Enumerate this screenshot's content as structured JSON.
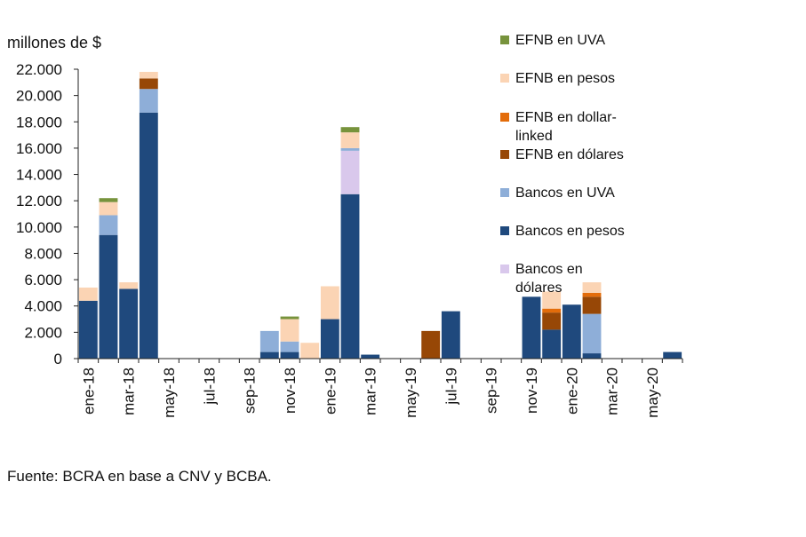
{
  "chart_data": {
    "type": "bar",
    "stacked": true,
    "title": "",
    "ylabel": "millones de $",
    "xlabel": "",
    "ylim": [
      0,
      22000
    ],
    "yticks": [
      0,
      2000,
      4000,
      6000,
      8000,
      10000,
      12000,
      14000,
      16000,
      18000,
      20000,
      22000
    ],
    "ytick_labels": [
      "0",
      "2.000",
      "4.000",
      "6.000",
      "8.000",
      "10.000",
      "12.000",
      "14.000",
      "16.000",
      "18.000",
      "20.000",
      "22.000"
    ],
    "categories": [
      "ene-18",
      "feb-18",
      "mar-18",
      "abr-18",
      "may-18",
      "jun-18",
      "jul-18",
      "ago-18",
      "sep-18",
      "oct-18",
      "nov-18",
      "dic-18",
      "ene-19",
      "feb-19",
      "mar-19",
      "abr-19",
      "may-19",
      "jun-19",
      "jul-19",
      "ago-19",
      "sep-19",
      "oct-19",
      "nov-19",
      "dic-19",
      "ene-20",
      "feb-20",
      "mar-20",
      "abr-20",
      "may-20",
      "jun-20"
    ],
    "xtick_labels": [
      "ene-18",
      "mar-18",
      "may-18",
      "jul-18",
      "sep-18",
      "nov-18",
      "ene-19",
      "mar-19",
      "may-19",
      "jul-19",
      "sep-19",
      "nov-19",
      "ene-20",
      "mar-20",
      "may-20"
    ],
    "series": [
      {
        "name": "Bancos en pesos",
        "color": "#1f497d",
        "values": [
          4400,
          9400,
          5300,
          18700,
          0,
          0,
          0,
          0,
          0,
          500,
          500,
          0,
          3000,
          12500,
          300,
          0,
          0,
          0,
          3600,
          0,
          0,
          0,
          4700,
          2200,
          4100,
          400,
          0,
          0,
          0,
          500
        ]
      },
      {
        "name": "Bancos en dólares",
        "color": "#d9c8ec",
        "values": [
          0,
          0,
          0,
          0,
          0,
          0,
          0,
          0,
          0,
          0,
          0,
          0,
          0,
          3300,
          0,
          0,
          0,
          0,
          0,
          0,
          0,
          0,
          0,
          0,
          0,
          0,
          0,
          0,
          0,
          0
        ]
      },
      {
        "name": "Bancos en UVA",
        "color": "#8eaed8",
        "values": [
          0,
          1500,
          0,
          1800,
          0,
          0,
          0,
          0,
          0,
          1600,
          800,
          0,
          0,
          200,
          0,
          0,
          0,
          0,
          0,
          0,
          0,
          0,
          0,
          0,
          0,
          3000,
          0,
          0,
          0,
          0
        ]
      },
      {
        "name": "EFNB en dólares",
        "color": "#974706",
        "values": [
          0,
          0,
          0,
          800,
          0,
          0,
          0,
          0,
          0,
          0,
          0,
          0,
          0,
          0,
          0,
          0,
          0,
          2100,
          0,
          0,
          0,
          0,
          0,
          1300,
          0,
          1300,
          0,
          0,
          0,
          0
        ]
      },
      {
        "name": "EFNB en dollar-linked",
        "color": "#e36c0a",
        "values": [
          0,
          0,
          0,
          0,
          0,
          0,
          0,
          0,
          0,
          0,
          0,
          0,
          0,
          0,
          0,
          0,
          0,
          0,
          0,
          0,
          0,
          0,
          0,
          300,
          0,
          300,
          0,
          0,
          0,
          0
        ]
      },
      {
        "name": "EFNB en pesos",
        "color": "#fbd4b4",
        "values": [
          1000,
          1000,
          500,
          500,
          0,
          0,
          0,
          0,
          0,
          0,
          1700,
          1200,
          2500,
          1200,
          0,
          0,
          0,
          0,
          0,
          0,
          0,
          0,
          0,
          1300,
          0,
          800,
          0,
          0,
          0,
          0
        ]
      },
      {
        "name": "EFNB en UVA",
        "color": "#77933c",
        "values": [
          0,
          300,
          0,
          0,
          0,
          0,
          0,
          0,
          0,
          0,
          200,
          0,
          0,
          400,
          0,
          0,
          0,
          0,
          0,
          0,
          0,
          0,
          0,
          0,
          0,
          0,
          0,
          0,
          0,
          0
        ]
      }
    ],
    "legend": [
      {
        "label": "EFNB en UVA",
        "color": "#77933c"
      },
      {
        "label": "EFNB en pesos",
        "color": "#fbd4b4"
      },
      {
        "label": "EFNB en dollar-linked",
        "color": "#e36c0a"
      },
      {
        "label": "EFNB en dólares",
        "color": "#974706"
      },
      {
        "label": "Bancos en UVA",
        "color": "#8eaed8"
      },
      {
        "label": "Bancos en pesos",
        "color": "#1f497d"
      },
      {
        "label": "Bancos en dólares",
        "color": "#d9c8ec"
      }
    ],
    "legend_position": "right",
    "grid": false
  },
  "source_note": "Fuente: BCRA en base a CNV y BCBA."
}
